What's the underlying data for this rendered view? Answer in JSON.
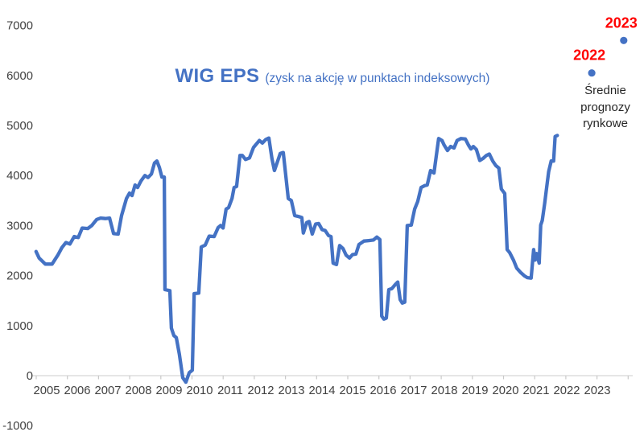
{
  "page": {
    "background": "#FFFFFF"
  },
  "chart_data": {
    "type": "line",
    "title": "WIG EPS",
    "subtitle": "(zysk na akcję w punktach indeksowych)",
    "annotation": "Średnie prognozy rynkowe",
    "legend_position": "none",
    "grid": false,
    "colors": {
      "line": "#4472C4",
      "axis": "#D6D6D6",
      "tick": "#C9C9C9",
      "text": "#404040",
      "title": "#4472C4",
      "forecast_label": "#FF0000",
      "forecast_dot": "#4472C4"
    },
    "y_axis": {
      "min": -1000,
      "max": 7000,
      "step": 1000,
      "ticks": [
        7000,
        6000,
        5000,
        4000,
        3000,
        2000,
        1000,
        0,
        -1000
      ]
    },
    "x_axis": {
      "ticks": [
        "2005",
        "2006",
        "2007",
        "2008",
        "2009",
        "2010",
        "2011",
        "2012",
        "2013",
        "2014",
        "2015",
        "2016",
        "2017",
        "2018",
        "2019",
        "2020",
        "2021",
        "2022",
        "2023"
      ]
    },
    "series": [
      {
        "name": "WIG EPS",
        "color": "#4472C4",
        "points": [
          [
            2005.1,
            2480
          ],
          [
            2005.2,
            2350
          ],
          [
            2005.4,
            2230
          ],
          [
            2005.62,
            2230
          ],
          [
            2005.81,
            2410
          ],
          [
            2005.94,
            2560
          ],
          [
            2006.07,
            2660
          ],
          [
            2006.2,
            2630
          ],
          [
            2006.34,
            2780
          ],
          [
            2006.47,
            2760
          ],
          [
            2006.6,
            2950
          ],
          [
            2006.78,
            2940
          ],
          [
            2006.91,
            3000
          ],
          [
            2007.07,
            3120
          ],
          [
            2007.2,
            3150
          ],
          [
            2007.35,
            3140
          ],
          [
            2007.49,
            3150
          ],
          [
            2007.62,
            2840
          ],
          [
            2007.77,
            2830
          ],
          [
            2007.88,
            3200
          ],
          [
            2008.04,
            3540
          ],
          [
            2008.14,
            3650
          ],
          [
            2008.22,
            3600
          ],
          [
            2008.32,
            3810
          ],
          [
            2008.4,
            3760
          ],
          [
            2008.51,
            3890
          ],
          [
            2008.64,
            4000
          ],
          [
            2008.74,
            3960
          ],
          [
            2008.85,
            4030
          ],
          [
            2008.95,
            4250
          ],
          [
            2009.03,
            4290
          ],
          [
            2009.11,
            4160
          ],
          [
            2009.19,
            3970
          ],
          [
            2009.27,
            3970
          ],
          [
            2009.29,
            1720
          ],
          [
            2009.45,
            1700
          ],
          [
            2009.5,
            950
          ],
          [
            2009.58,
            800
          ],
          [
            2009.66,
            760
          ],
          [
            2009.76,
            430
          ],
          [
            2009.87,
            -40
          ],
          [
            2009.97,
            -130
          ],
          [
            2010.08,
            60
          ],
          [
            2010.18,
            110
          ],
          [
            2010.24,
            1640
          ],
          [
            2010.39,
            1650
          ],
          [
            2010.47,
            2570
          ],
          [
            2010.6,
            2610
          ],
          [
            2010.73,
            2790
          ],
          [
            2010.89,
            2780
          ],
          [
            2011.02,
            2960
          ],
          [
            2011.1,
            3000
          ],
          [
            2011.18,
            2950
          ],
          [
            2011.28,
            3330
          ],
          [
            2011.36,
            3360
          ],
          [
            2011.47,
            3540
          ],
          [
            2011.54,
            3760
          ],
          [
            2011.62,
            3780
          ],
          [
            2011.73,
            4400
          ],
          [
            2011.81,
            4400
          ],
          [
            2011.91,
            4320
          ],
          [
            2012.04,
            4350
          ],
          [
            2012.17,
            4560
          ],
          [
            2012.25,
            4620
          ],
          [
            2012.36,
            4700
          ],
          [
            2012.46,
            4650
          ],
          [
            2012.57,
            4720
          ],
          [
            2012.67,
            4750
          ],
          [
            2012.77,
            4340
          ],
          [
            2012.85,
            4100
          ],
          [
            2012.93,
            4240
          ],
          [
            2013.04,
            4440
          ],
          [
            2013.14,
            4460
          ],
          [
            2013.22,
            4000
          ],
          [
            2013.3,
            3540
          ],
          [
            2013.4,
            3500
          ],
          [
            2013.51,
            3200
          ],
          [
            2013.64,
            3180
          ],
          [
            2013.74,
            3160
          ],
          [
            2013.79,
            2850
          ],
          [
            2013.9,
            3060
          ],
          [
            2013.98,
            3080
          ],
          [
            2014.08,
            2830
          ],
          [
            2014.19,
            3030
          ],
          [
            2014.29,
            3040
          ],
          [
            2014.4,
            2920
          ],
          [
            2014.5,
            2900
          ],
          [
            2014.61,
            2800
          ],
          [
            2014.69,
            2780
          ],
          [
            2014.76,
            2250
          ],
          [
            2014.87,
            2220
          ],
          [
            2014.97,
            2600
          ],
          [
            2015.08,
            2540
          ],
          [
            2015.18,
            2410
          ],
          [
            2015.29,
            2350
          ],
          [
            2015.39,
            2420
          ],
          [
            2015.5,
            2430
          ],
          [
            2015.6,
            2620
          ],
          [
            2015.76,
            2690
          ],
          [
            2015.92,
            2700
          ],
          [
            2016.07,
            2710
          ],
          [
            2016.18,
            2770
          ],
          [
            2016.28,
            2720
          ],
          [
            2016.34,
            1190
          ],
          [
            2016.41,
            1130
          ],
          [
            2016.49,
            1150
          ],
          [
            2016.57,
            1720
          ],
          [
            2016.67,
            1740
          ],
          [
            2016.78,
            1820
          ],
          [
            2016.86,
            1870
          ],
          [
            2016.94,
            1520
          ],
          [
            2017.01,
            1450
          ],
          [
            2017.09,
            1470
          ],
          [
            2017.17,
            3000
          ],
          [
            2017.3,
            3010
          ],
          [
            2017.41,
            3330
          ],
          [
            2017.51,
            3480
          ],
          [
            2017.62,
            3760
          ],
          [
            2017.75,
            3800
          ],
          [
            2017.82,
            3810
          ],
          [
            2017.93,
            4100
          ],
          [
            2018.04,
            4050
          ],
          [
            2018.19,
            4740
          ],
          [
            2018.3,
            4700
          ],
          [
            2018.37,
            4610
          ],
          [
            2018.48,
            4500
          ],
          [
            2018.58,
            4580
          ],
          [
            2018.69,
            4550
          ],
          [
            2018.79,
            4700
          ],
          [
            2018.92,
            4740
          ],
          [
            2019.06,
            4730
          ],
          [
            2019.16,
            4610
          ],
          [
            2019.24,
            4530
          ],
          [
            2019.32,
            4580
          ],
          [
            2019.42,
            4520
          ],
          [
            2019.53,
            4300
          ],
          [
            2019.63,
            4340
          ],
          [
            2019.74,
            4400
          ],
          [
            2019.84,
            4430
          ],
          [
            2019.95,
            4290
          ],
          [
            2020.05,
            4200
          ],
          [
            2020.15,
            4150
          ],
          [
            2020.23,
            3730
          ],
          [
            2020.34,
            3640
          ],
          [
            2020.42,
            2520
          ],
          [
            2020.5,
            2460
          ],
          [
            2020.63,
            2300
          ],
          [
            2020.73,
            2150
          ],
          [
            2020.86,
            2060
          ],
          [
            2020.99,
            1990
          ],
          [
            2021.07,
            1960
          ],
          [
            2021.2,
            1950
          ],
          [
            2021.28,
            2520
          ],
          [
            2021.33,
            2310
          ],
          [
            2021.38,
            2440
          ],
          [
            2021.46,
            2250
          ],
          [
            2021.51,
            3010
          ],
          [
            2021.56,
            3100
          ],
          [
            2021.64,
            3440
          ],
          [
            2021.69,
            3700
          ],
          [
            2021.77,
            4080
          ],
          [
            2021.85,
            4290
          ],
          [
            2021.93,
            4290
          ],
          [
            2021.98,
            4780
          ],
          [
            2022.05,
            4800
          ]
        ]
      }
    ],
    "forecasts": [
      {
        "label": "2022",
        "value": 6050,
        "x_year": 2023.17
      },
      {
        "label": "2023",
        "value": 6700,
        "x_year": 2024.21
      }
    ]
  }
}
